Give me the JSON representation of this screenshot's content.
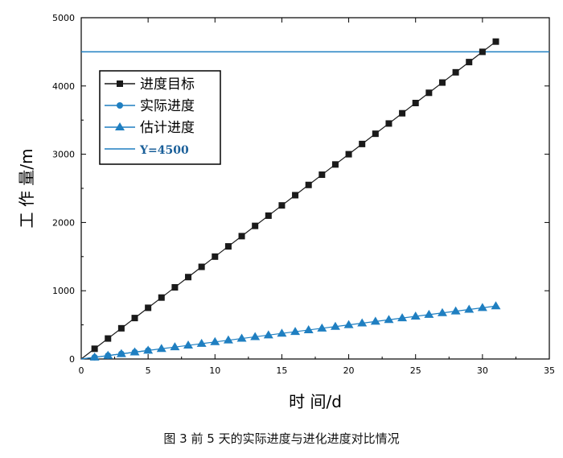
{
  "chart_data": {
    "type": "line",
    "xlabel": "时 间/d",
    "ylabel": "工 作 量/m",
    "xlim": [
      0,
      35
    ],
    "ylim": [
      0,
      5000
    ],
    "x_ticks": [
      0,
      5,
      10,
      15,
      20,
      25,
      30,
      35
    ],
    "y_ticks": [
      0,
      1000,
      2000,
      3000,
      4000,
      5000
    ],
    "grid": false,
    "legend_position": "top-left",
    "series": [
      {
        "name": "进度目标",
        "color": "#1a1a1a",
        "marker": "square",
        "x": [
          1,
          2,
          3,
          4,
          5,
          6,
          7,
          8,
          9,
          10,
          11,
          12,
          13,
          14,
          15,
          16,
          17,
          18,
          19,
          20,
          21,
          22,
          23,
          24,
          25,
          26,
          27,
          28,
          29,
          30,
          31
        ],
        "y": [
          150,
          300,
          450,
          600,
          750,
          900,
          1050,
          1200,
          1350,
          1500,
          1650,
          1800,
          1950,
          2100,
          2250,
          2400,
          2550,
          2700,
          2850,
          3000,
          3150,
          3300,
          3450,
          3600,
          3750,
          3900,
          4050,
          4200,
          4350,
          4500,
          4650
        ]
      },
      {
        "name": "实际进度",
        "color": "#1f7fc1",
        "marker": "circle",
        "x": [
          1,
          2,
          3,
          4,
          5
        ],
        "y": [
          25,
          50,
          75,
          100,
          125
        ]
      },
      {
        "name": "估计进度",
        "color": "#1f7fc1",
        "marker": "triangle",
        "x": [
          1,
          2,
          3,
          4,
          5,
          6,
          7,
          8,
          9,
          10,
          11,
          12,
          13,
          14,
          15,
          16,
          17,
          18,
          19,
          20,
          21,
          22,
          23,
          24,
          25,
          26,
          27,
          28,
          29,
          30,
          31
        ],
        "y": [
          25,
          50,
          75,
          100,
          125,
          150,
          175,
          200,
          225,
          250,
          275,
          300,
          325,
          350,
          375,
          400,
          425,
          450,
          475,
          500,
          525,
          550,
          575,
          600,
          625,
          650,
          675,
          700,
          725,
          750,
          775
        ]
      }
    ],
    "reference_line": {
      "name": "Y=4500",
      "y": 4500,
      "color": "#1f7fc1"
    }
  },
  "caption": "图 3 前 5 天的实际进度与进化进度对比情况"
}
